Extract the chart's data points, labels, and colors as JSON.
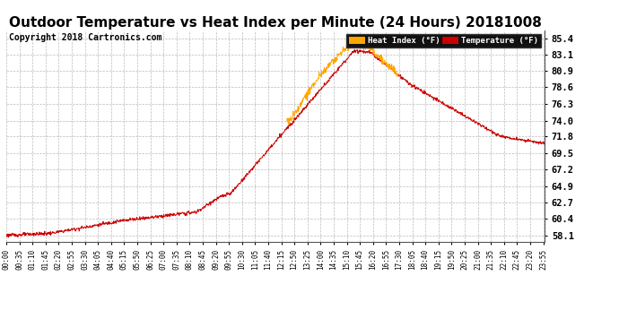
{
  "title": "Outdoor Temperature vs Heat Index per Minute (24 Hours) 20181008",
  "copyright": "Copyright 2018 Cartronics.com",
  "temp_color": "#CC0000",
  "heat_index_color": "#FFA500",
  "yticks": [
    58.1,
    60.4,
    62.7,
    64.9,
    67.2,
    69.5,
    71.8,
    74.0,
    76.3,
    78.6,
    80.9,
    83.1,
    85.4
  ],
  "ymin": 57.2,
  "ymax": 86.5,
  "background_color": "#FFFFFF",
  "grid_color": "#AAAAAA",
  "title_fontsize": 11,
  "copyright_fontsize": 7,
  "xtick_labels": [
    "00:00",
    "00:35",
    "01:10",
    "01:45",
    "02:20",
    "02:55",
    "03:30",
    "04:05",
    "04:40",
    "05:15",
    "05:50",
    "06:25",
    "07:00",
    "07:35",
    "08:10",
    "08:45",
    "09:20",
    "09:55",
    "10:30",
    "11:05",
    "11:40",
    "12:15",
    "12:50",
    "13:25",
    "14:00",
    "14:35",
    "15:10",
    "15:45",
    "16:20",
    "16:55",
    "17:30",
    "18:05",
    "18:40",
    "19:15",
    "19:50",
    "20:25",
    "21:00",
    "21:35",
    "22:10",
    "22:45",
    "23:20",
    "23:55"
  ]
}
